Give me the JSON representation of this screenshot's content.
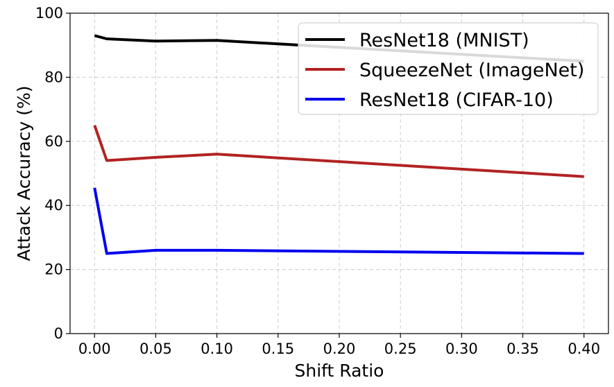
{
  "chart_data": {
    "type": "line",
    "title": "",
    "xlabel": "Shift Ratio",
    "ylabel": "Attack Accuracy (%)",
    "xlim": [
      -0.02,
      0.42
    ],
    "ylim": [
      0,
      100
    ],
    "xticks": [
      0.0,
      0.05,
      0.1,
      0.15,
      0.2,
      0.25,
      0.3,
      0.35,
      0.4
    ],
    "xtick_labels": [
      "0.00",
      "0.05",
      "0.10",
      "0.15",
      "0.20",
      "0.25",
      "0.30",
      "0.35",
      "0.40"
    ],
    "yticks": [
      0,
      20,
      40,
      60,
      80,
      100
    ],
    "ytick_labels": [
      "0",
      "20",
      "40",
      "60",
      "80",
      "100"
    ],
    "grid": true,
    "legend_position": "top-right",
    "x": [
      0.0,
      0.01,
      0.05,
      0.1,
      0.4
    ],
    "series": [
      {
        "name": "ResNet18 (MNIST)",
        "color": "#000000",
        "values": [
          93,
          92,
          91.3,
          91.5,
          85
        ]
      },
      {
        "name": "SqueezeNet (ImageNet)",
        "color": "#b22222",
        "values": [
          65,
          54,
          55,
          56,
          49
        ]
      },
      {
        "name": "ResNet18 (CIFAR-10)",
        "color": "#0000ee",
        "values": [
          45.5,
          25,
          26,
          26,
          25
        ]
      }
    ]
  }
}
